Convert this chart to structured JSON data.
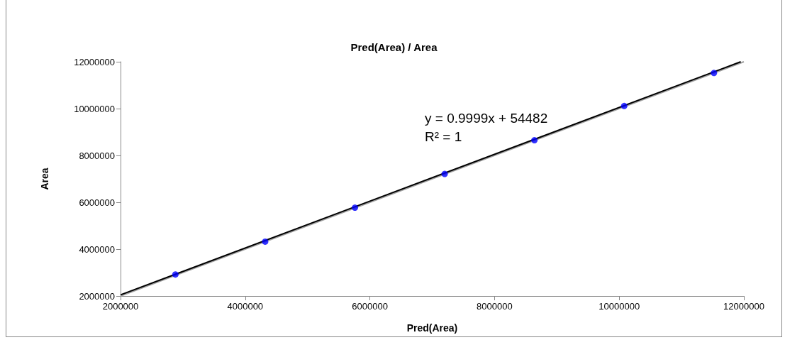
{
  "chart_data": {
    "type": "scatter",
    "title": "Pred(Area) / Area",
    "xlabel": "Pred(Area)",
    "ylabel": "Area",
    "x": [
      2880000,
      4320000,
      5760000,
      7200000,
      8640000,
      10080000,
      11520000
    ],
    "series": [
      {
        "color": "#0000ff",
        "marker": "circle",
        "values": [
          2920000,
          4320000,
          5770000,
          7210000,
          8650000,
          10110000,
          11520000
        ]
      },
      {
        "type": "line",
        "color": "#a0a0a0",
        "marker": "none",
        "line_style": "solid",
        "x": [
          2000000,
          12000000
        ],
        "values": [
          2000000,
          12000000
        ]
      },
      {
        "type": "line",
        "color": "#000000",
        "marker": "none",
        "line_style": "solid",
        "x": [
          2000000,
          11950000
        ],
        "values": [
          2050000,
          12000000
        ]
      }
    ],
    "annotations": [
      "y = 0.9999x + 54482",
      "R² = 1"
    ],
    "xlim": [
      2000000,
      12000000
    ],
    "xticks": [
      2000000,
      4000000,
      6000000,
      8000000,
      10000000,
      12000000
    ],
    "ylim": [
      2000000,
      12000000
    ],
    "yticks": [
      2000000,
      4000000,
      6000000,
      8000000,
      10000000,
      12000000
    ],
    "grid": false
  }
}
